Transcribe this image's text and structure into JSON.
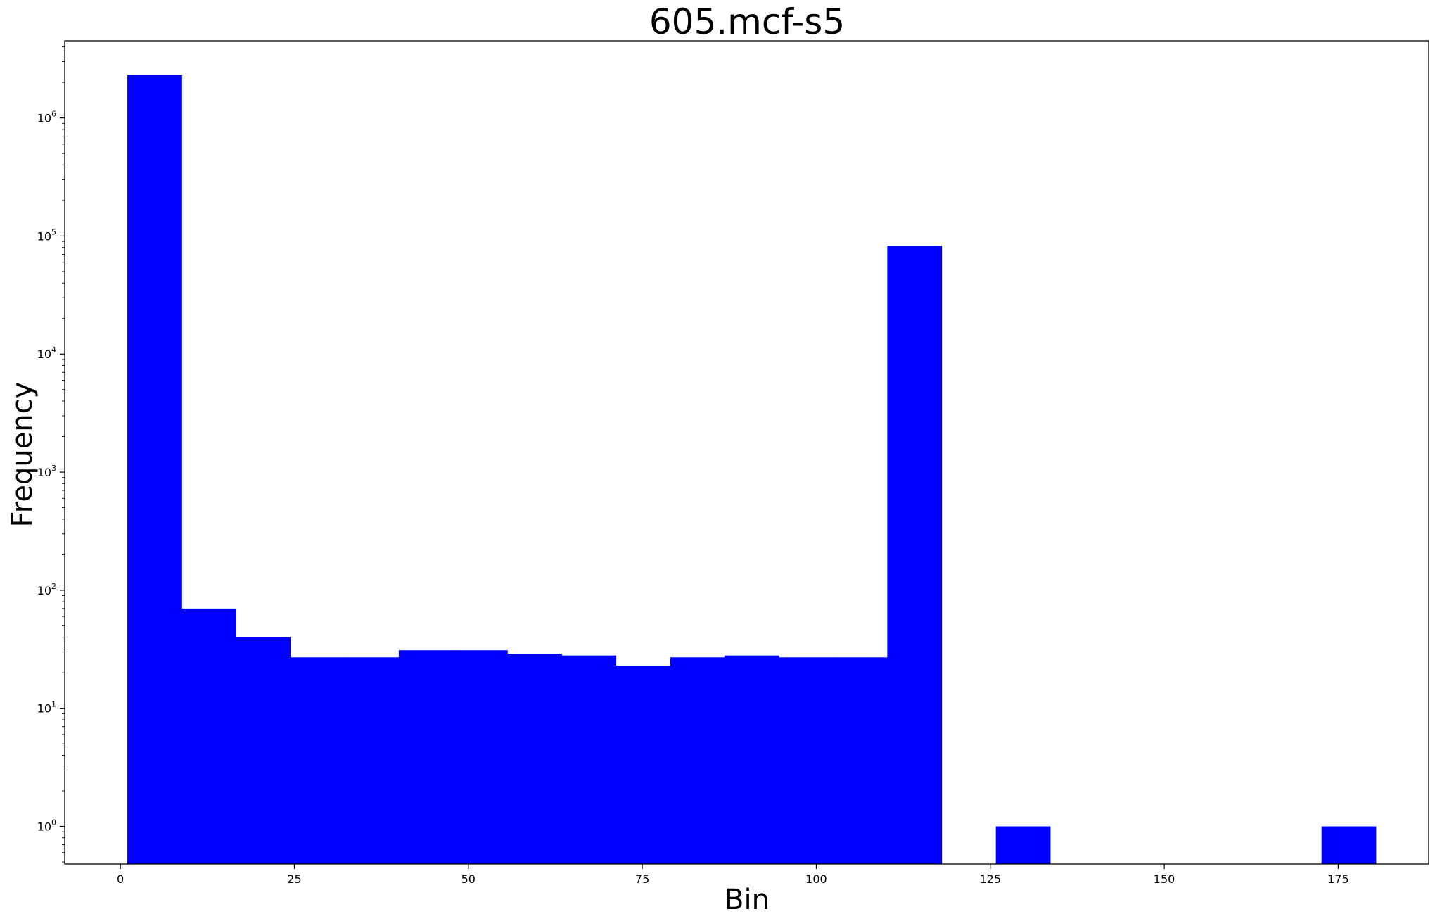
{
  "chart_data": {
    "type": "bar",
    "title": "605.mcf-s5",
    "xlabel": "Bin",
    "ylabel": "Frequency",
    "yscale": "log",
    "xlim": [
      -8,
      188
    ],
    "ylim": [
      0.48,
      4500000
    ],
    "grid": false,
    "bar_color": "#0000ff",
    "x_ticks": [
      0,
      25,
      50,
      75,
      100,
      125,
      150,
      175
    ],
    "y_ticks": [
      {
        "value": 1,
        "base": "10",
        "exp": "0"
      },
      {
        "value": 10,
        "base": "10",
        "exp": "1"
      },
      {
        "value": 100,
        "base": "10",
        "exp": "2"
      },
      {
        "value": 1000,
        "base": "10",
        "exp": "3"
      },
      {
        "value": 10000,
        "base": "10",
        "exp": "4"
      },
      {
        "value": 100000,
        "base": "10",
        "exp": "5"
      },
      {
        "value": 1000000,
        "base": "10",
        "exp": "6"
      }
    ],
    "bins": [
      {
        "x0": 1.0,
        "x1": 8.8,
        "value": 2300000
      },
      {
        "x0": 8.8,
        "x1": 16.6,
        "value": 70
      },
      {
        "x0": 16.6,
        "x1": 24.4,
        "value": 40
      },
      {
        "x0": 24.4,
        "x1": 32.2,
        "value": 27
      },
      {
        "x0": 32.2,
        "x1": 40.0,
        "value": 27
      },
      {
        "x0": 40.0,
        "x1": 47.8,
        "value": 31
      },
      {
        "x0": 47.8,
        "x1": 55.6,
        "value": 31
      },
      {
        "x0": 55.6,
        "x1": 63.4,
        "value": 29
      },
      {
        "x0": 63.4,
        "x1": 71.2,
        "value": 28
      },
      {
        "x0": 71.2,
        "x1": 79.0,
        "value": 23
      },
      {
        "x0": 79.0,
        "x1": 86.8,
        "value": 27
      },
      {
        "x0": 86.8,
        "x1": 94.6,
        "value": 28
      },
      {
        "x0": 94.6,
        "x1": 102.4,
        "value": 27
      },
      {
        "x0": 102.4,
        "x1": 110.2,
        "value": 27
      },
      {
        "x0": 110.2,
        "x1": 118.0,
        "value": 83000
      },
      {
        "x0": 118.0,
        "x1": 125.8,
        "value": 0
      },
      {
        "x0": 125.8,
        "x1": 133.6,
        "value": 1
      },
      {
        "x0": 133.6,
        "x1": 141.4,
        "value": 0
      },
      {
        "x0": 141.4,
        "x1": 149.2,
        "value": 0
      },
      {
        "x0": 149.2,
        "x1": 157.0,
        "value": 0
      },
      {
        "x0": 157.0,
        "x1": 164.8,
        "value": 0
      },
      {
        "x0": 164.8,
        "x1": 172.6,
        "value": 0
      },
      {
        "x0": 172.6,
        "x1": 180.4,
        "value": 1
      }
    ]
  }
}
